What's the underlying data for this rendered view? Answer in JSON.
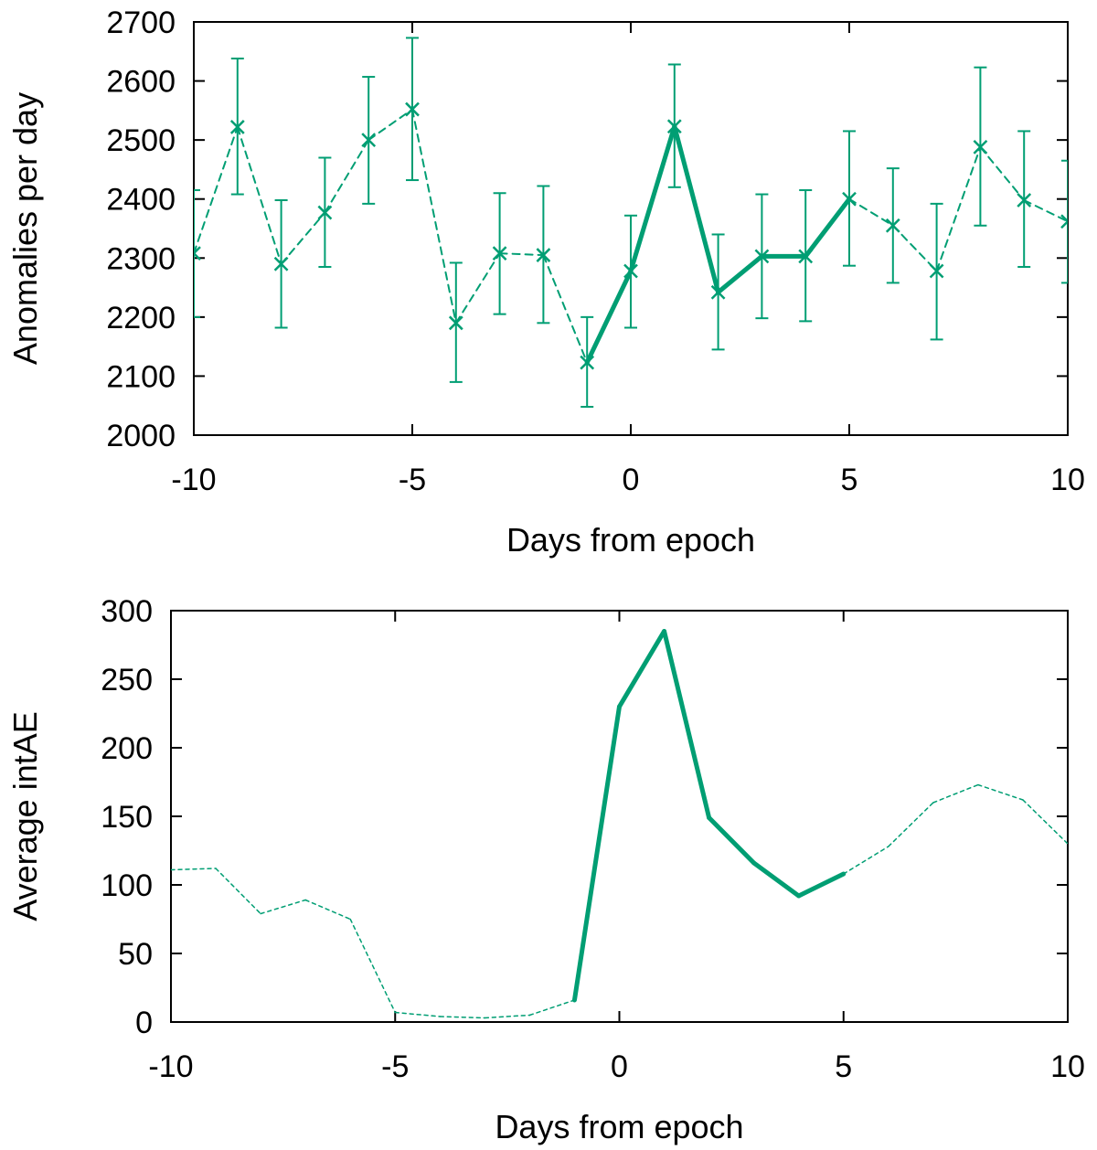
{
  "chart_data": [
    {
      "type": "line",
      "xlabel": "Days from epoch",
      "ylabel": "Anomalies per day",
      "xlim": [
        -10,
        10
      ],
      "ylim": [
        2000,
        2700
      ],
      "xticks": [
        -10,
        -5,
        0,
        5,
        10
      ],
      "yticks": [
        2000,
        2100,
        2200,
        2300,
        2400,
        2500,
        2600,
        2700
      ],
      "grid": false,
      "color": "#009e73",
      "x": [
        -10,
        -9,
        -8,
        -7,
        -6,
        -5,
        -4,
        -3,
        -2,
        -1,
        0,
        1,
        2,
        3,
        4,
        5,
        6,
        7,
        8,
        9,
        10
      ],
      "y": [
        2308,
        2522,
        2290,
        2377,
        2500,
        2552,
        2190,
        2308,
        2305,
        2123,
        2278,
        2523,
        2242,
        2303,
        2303,
        2400,
        2355,
        2278,
        2488,
        2398,
        2362
      ],
      "err_low": [
        2200,
        2408,
        2182,
        2285,
        2392,
        2432,
        2090,
        2205,
        2190,
        2048,
        2182,
        2420,
        2145,
        2198,
        2193,
        2287,
        2258,
        2162,
        2355,
        2285,
        2258
      ],
      "err_high": [
        2415,
        2638,
        2398,
        2470,
        2607,
        2673,
        2292,
        2410,
        2422,
        2200,
        2372,
        2628,
        2340,
        2408,
        2415,
        2515,
        2452,
        2392,
        2623,
        2515,
        2465
      ],
      "highlight_range": [
        -1,
        5
      ]
    },
    {
      "type": "line",
      "xlabel": "Days from epoch",
      "ylabel": "Average intAE",
      "xlim": [
        -10,
        10
      ],
      "ylim": [
        0,
        300
      ],
      "xticks": [
        -10,
        -5,
        0,
        5,
        10
      ],
      "yticks": [
        0,
        50,
        100,
        150,
        200,
        250,
        300
      ],
      "grid": false,
      "color": "#009e73",
      "x": [
        -10,
        -9,
        -8,
        -7,
        -6,
        -5,
        -4,
        -3,
        -2,
        -1,
        0,
        1,
        2,
        3,
        4,
        5,
        6,
        7,
        8,
        9,
        10
      ],
      "y": [
        111,
        112,
        79,
        89,
        75,
        7,
        4,
        3,
        5,
        16,
        230,
        285,
        149,
        116,
        92,
        108,
        128,
        160,
        173,
        162,
        130
      ],
      "highlight_range": [
        -1,
        5
      ]
    }
  ]
}
